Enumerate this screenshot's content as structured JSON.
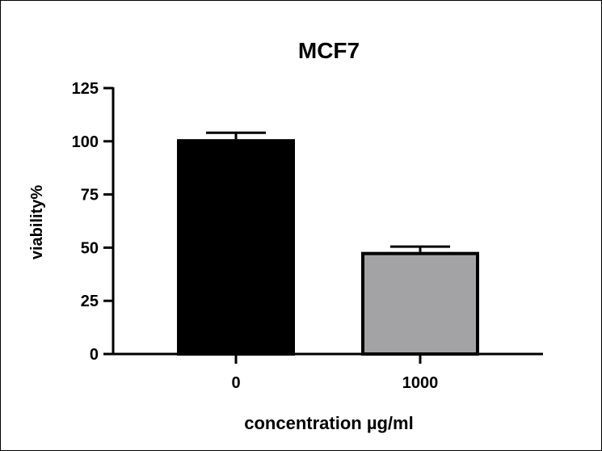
{
  "chart_data": {
    "type": "bar",
    "title": "MCF7",
    "xlabel": "concentration µg/ml",
    "ylabel": "viability%",
    "categories": [
      "0",
      "1000"
    ],
    "values": [
      101,
      48
    ],
    "errors": [
      3,
      2.5
    ],
    "ylim": [
      0,
      125
    ],
    "yticks": [
      "0",
      "25",
      "50",
      "75",
      "100",
      "125"
    ],
    "colors": [
      "#000000",
      "#a3a3a6"
    ],
    "outline_color": "#000000",
    "grid": false,
    "legend": "none"
  }
}
